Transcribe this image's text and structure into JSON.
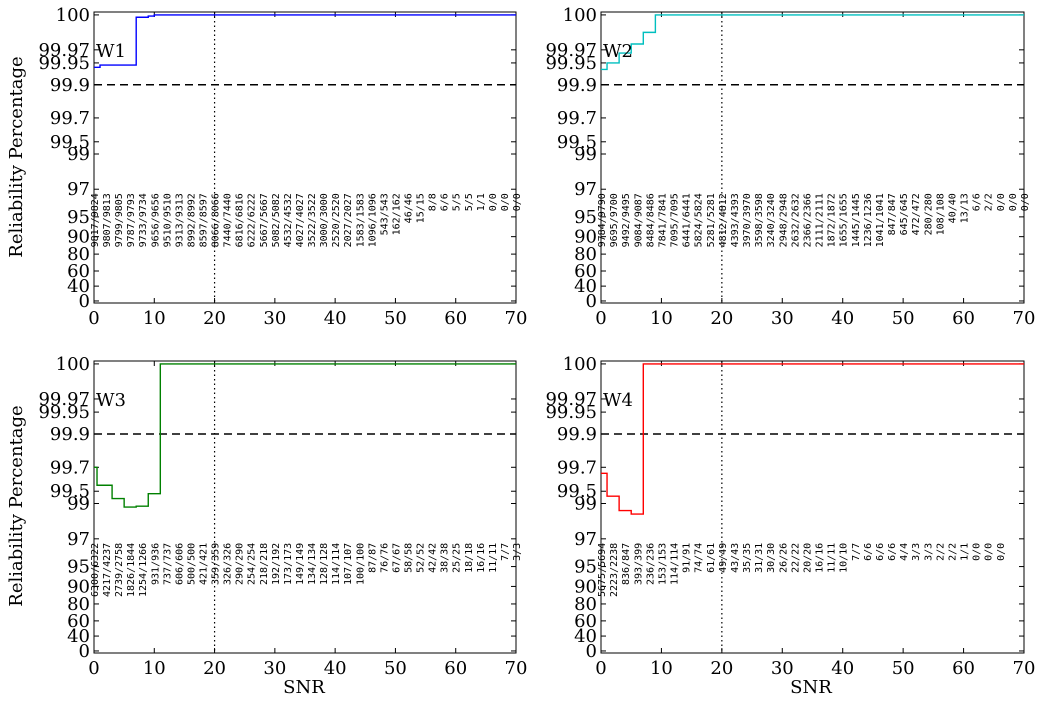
{
  "figure": {
    "ylabel": "Reliability Percentage",
    "xlabel": "SNR"
  },
  "chart_data": [
    {
      "type": "line",
      "panel_label": "W1",
      "color": "#0000ff",
      "x_ticks": [
        0,
        10,
        20,
        30,
        40,
        50,
        60,
        70
      ],
      "y_ticks": [
        "0",
        "40",
        "60",
        "80",
        "90",
        "95",
        "97",
        "99",
        "99.5",
        "99.7",
        "99.9",
        "99.95",
        "99.97",
        "100"
      ],
      "xlim": [
        0,
        70
      ],
      "y_scale": "reliability (nonlinear)",
      "reference_line_y": 99.9,
      "reference_line_style": "dashed",
      "vline_x": 20,
      "vline_style": "dotted",
      "steps": [
        [
          0,
          99.94
        ],
        [
          1,
          99.945
        ],
        [
          7,
          99.998
        ],
        [
          9,
          99.999
        ],
        [
          10,
          100
        ],
        [
          70,
          100
        ]
      ],
      "counts": [
        "9817/9824",
        "9807/9813",
        "9799/9805",
        "9787/9793",
        "9733/9734",
        "9656/9656",
        "9510/9510",
        "9313/9313",
        "8992/8992",
        "8597/8597",
        "8066/8066",
        "7440/7440",
        "6816/6816",
        "6222/6222",
        "5667/5667",
        "5082/5082",
        "4532/4532",
        "4027/4027",
        "3522/3522",
        "3000/3000",
        "2520/2520",
        "2027/2027",
        "1583/1583",
        "1096/1096",
        "543/543",
        "162/162",
        "46/46",
        "15/15",
        "8/8",
        "6/6",
        "5/5",
        "5/5",
        "1/1",
        "0/0",
        "0/0",
        "0/0"
      ]
    },
    {
      "type": "line",
      "panel_label": "W2",
      "color": "#00bfbf",
      "x_ticks": [
        0,
        10,
        20,
        30,
        40,
        50,
        60,
        70
      ],
      "y_ticks": [
        "0",
        "40",
        "60",
        "80",
        "90",
        "95",
        "97",
        "99",
        "99.5",
        "99.7",
        "99.9",
        "99.95",
        "99.97",
        "100"
      ],
      "xlim": [
        0,
        70
      ],
      "y_scale": "reliability (nonlinear)",
      "reference_line_y": 99.9,
      "reference_line_style": "dashed",
      "vline_x": 20,
      "vline_style": "dotted",
      "steps": [
        [
          0,
          99.935
        ],
        [
          1,
          99.95
        ],
        [
          3,
          99.965
        ],
        [
          5,
          99.975
        ],
        [
          7,
          99.985
        ],
        [
          9,
          100
        ],
        [
          70,
          100
        ]
      ],
      "counts": [
        "9784/9790",
        "9695/9700",
        "9492/9495",
        "9084/9087",
        "8484/8486",
        "7841/7841",
        "7095/7095",
        "6441/6441",
        "5824/5824",
        "5281/5281",
        "4812/4812",
        "4393/4393",
        "3970/3970",
        "3598/3598",
        "3240/3240",
        "2948/2948",
        "2632/2632",
        "2366/2366",
        "2111/2111",
        "1872/1872",
        "1655/1655",
        "1445/1445",
        "1236/1236",
        "1041/1041",
        "847/847",
        "645/645",
        "472/472",
        "280/280",
        "108/108",
        "40/40",
        "13/13",
        "6/6",
        "2/2",
        "0/0",
        "0/0",
        "0/0"
      ]
    },
    {
      "type": "line",
      "panel_label": "W3",
      "color": "#008000",
      "x_ticks": [
        0,
        10,
        20,
        30,
        40,
        50,
        60,
        70
      ],
      "y_ticks": [
        "0",
        "40",
        "60",
        "80",
        "90",
        "95",
        "97",
        "99",
        "99.5",
        "99.7",
        "99.9",
        "99.95",
        "99.97",
        "100"
      ],
      "xlim": [
        0,
        70
      ],
      "y_scale": "reliability (nonlinear)",
      "reference_line_y": 99.9,
      "reference_line_style": "dashed",
      "vline_x": 20,
      "vline_style": "dotted",
      "steps": [
        [
          0,
          99.7
        ],
        [
          0.5,
          99.55
        ],
        [
          3,
          99.2
        ],
        [
          5,
          98.8
        ],
        [
          7,
          98.85
        ],
        [
          9,
          99.4
        ],
        [
          11,
          100
        ],
        [
          70,
          100
        ]
      ],
      "counts": [
        "6300/6322",
        "4217/4237",
        "2739/2758",
        "1826/1844",
        "1254/1266",
        "931/936",
        "737/737",
        "606/606",
        "500/500",
        "421/421",
        "359/359",
        "326/326",
        "290/290",
        "254/254",
        "218/218",
        "192/192",
        "173/173",
        "149/149",
        "134/134",
        "128/128",
        "114/114",
        "107/107",
        "100/100",
        "87/87",
        "76/76",
        "67/67",
        "58/58",
        "52/52",
        "42/42",
        "38/38",
        "25/25",
        "18/18",
        "16/16",
        "11/11",
        "7/7",
        "3/3"
      ]
    },
    {
      "type": "line",
      "panel_label": "W4",
      "color": "#ff0000",
      "x_ticks": [
        0,
        10,
        20,
        30,
        40,
        50,
        60,
        70
      ],
      "y_ticks": [
        "0",
        "40",
        "60",
        "80",
        "90",
        "95",
        "97",
        "99",
        "99.5",
        "99.7",
        "99.9",
        "99.95",
        "99.97",
        "100"
      ],
      "xlim": [
        0,
        70
      ],
      "y_scale": "reliability (nonlinear)",
      "reference_line_y": 99.9,
      "reference_line_style": "dashed",
      "vline_x": 20,
      "vline_style": "dotted",
      "steps": [
        [
          0,
          99.65
        ],
        [
          1,
          99.3
        ],
        [
          3,
          98.6
        ],
        [
          5,
          98.4
        ],
        [
          7,
          100
        ],
        [
          70,
          100
        ]
      ],
      "counts": [
        "5675/5694",
        "2223/2238",
        "836/847",
        "393/399",
        "236/236",
        "153/153",
        "114/114",
        "91/91",
        "74/74",
        "61/61",
        "49/49",
        "43/43",
        "35/35",
        "31/31",
        "30/30",
        "26/26",
        "22/22",
        "20/20",
        "16/16",
        "11/11",
        "10/10",
        "7/7",
        "6/6",
        "6/6",
        "6/6",
        "4/4",
        "3/3",
        "3/3",
        "2/2",
        "2/2",
        "1/1",
        "0/0",
        "0/0",
        "0/0"
      ]
    }
  ]
}
